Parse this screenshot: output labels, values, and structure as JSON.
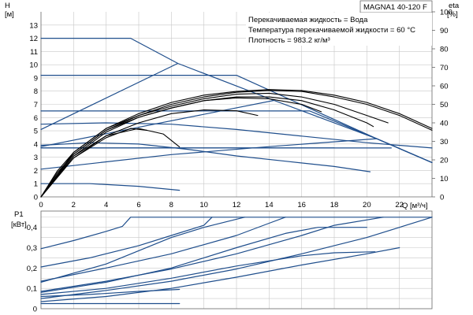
{
  "chart_data": [
    {
      "type": "line",
      "model_label": "MAGNA1 40-120 F",
      "annotations": [
        "Перекачиваемая жидкость = Вода",
        "Температура перекачиваемой жидкости = 60 °C",
        "Плотность = 983.2 кг/м³"
      ],
      "ylabel": "H",
      "yunit": "[м]",
      "y2label": "eta",
      "y2unit": "[%]",
      "xlabel": "Q",
      "xunit": "[м³/ч]",
      "xlim": [
        0,
        24
      ],
      "ylim": [
        0,
        14
      ],
      "y2lim": [
        0,
        100
      ],
      "x_ticks": [
        0,
        2,
        4,
        6,
        8,
        10,
        12,
        14,
        16,
        18,
        20,
        22
      ],
      "x_tick_labels": [
        "0",
        "2",
        "4",
        "6",
        "8",
        "10",
        "12",
        "14",
        "16",
        "18",
        "20",
        "22"
      ],
      "y_ticks": [
        0,
        1,
        2,
        3,
        4,
        5,
        6,
        7,
        8,
        9,
        10,
        11,
        12,
        13
      ],
      "y_tick_labels": [
        "0",
        "1",
        "2",
        "3",
        "4",
        "5",
        "6",
        "7",
        "8",
        "9",
        "10",
        "11",
        "12",
        "13"
      ],
      "y2_ticks": [
        0,
        10,
        20,
        30,
        40,
        50,
        60,
        70,
        80,
        90,
        100
      ],
      "y2_tick_labels": [
        "0",
        "10",
        "20",
        "30",
        "40",
        "50",
        "60",
        "70",
        "80",
        "90",
        "100"
      ],
      "grid": true,
      "colors": {
        "head": "#1f4e8c",
        "efficiency": "#000000",
        "grid": "#c8c8c8"
      },
      "series": [
        {
          "kind": "head",
          "points": [
            [
              0,
              12
            ],
            [
              5.5,
              12
            ],
            [
              8.4,
              10.1
            ],
            [
              14.3,
              7.3
            ],
            [
              20.6,
              4.4
            ],
            [
              24,
              2.6
            ]
          ]
        },
        {
          "kind": "head",
          "points": [
            [
              0,
              9.2
            ],
            [
              12,
              9.2
            ],
            [
              20.6,
              4.4
            ],
            [
              24,
              2.6
            ]
          ]
        },
        {
          "kind": "head",
          "points": [
            [
              0,
              6.5
            ],
            [
              16.5,
              6.5
            ],
            [
              20.6,
              4.4
            ],
            [
              24,
              2.6
            ]
          ]
        },
        {
          "kind": "head",
          "points": [
            [
              0,
              3.7
            ],
            [
              21.5,
              3.7
            ]
          ]
        },
        {
          "kind": "head",
          "points": [
            [
              0,
              5.1
            ],
            [
              8.4,
              10.1
            ]
          ]
        },
        {
          "kind": "head",
          "points": [
            [
              0,
              3.8
            ],
            [
              14.3,
              7.3
            ]
          ]
        },
        {
          "kind": "head",
          "points": [
            [
              0,
              2.1
            ],
            [
              8,
              3.2
            ],
            [
              14,
              3.8
            ],
            [
              20.6,
              4.4
            ]
          ]
        },
        {
          "kind": "head",
          "points": [
            [
              0,
              3.7
            ],
            [
              6,
              3.7
            ],
            [
              12,
              3.7
            ],
            [
              18,
              3.7
            ]
          ]
        },
        {
          "kind": "head",
          "points": [
            [
              0,
              5.5
            ],
            [
              4,
              5.6
            ],
            [
              8,
              5.5
            ],
            [
              12,
              5.1
            ],
            [
              16,
              4.6
            ],
            [
              20,
              4.1
            ],
            [
              24,
              3.7
            ]
          ]
        },
        {
          "kind": "head",
          "points": [
            [
              0,
              3.9
            ],
            [
              3,
              4.1
            ],
            [
              6,
              4
            ],
            [
              9,
              3.6
            ],
            [
              12,
              3.1
            ],
            [
              15,
              2.7
            ],
            [
              18,
              2.3
            ],
            [
              20.2,
              1.9
            ]
          ]
        },
        {
          "kind": "head",
          "points": [
            [
              0,
              1
            ],
            [
              3,
              1
            ],
            [
              6,
              0.8
            ],
            [
              8.5,
              0.5
            ]
          ]
        },
        {
          "kind": "efficiency",
          "points": [
            [
              0,
              0
            ],
            [
              1,
              14
            ],
            [
              2,
              24
            ],
            [
              4,
              37
            ],
            [
              6,
              45
            ],
            [
              8,
              51
            ],
            [
              10,
              55
            ],
            [
              12,
              57
            ],
            [
              14,
              58
            ],
            [
              16,
              57.5
            ],
            [
              18,
              55
            ],
            [
              20,
              51
            ],
            [
              22,
              45
            ],
            [
              24,
              37
            ]
          ]
        },
        {
          "kind": "efficiency",
          "points": [
            [
              0,
              0
            ],
            [
              1,
              13
            ],
            [
              2,
              23
            ],
            [
              4,
              36
            ],
            [
              6,
              44
            ],
            [
              8,
              50
            ],
            [
              10,
              54
            ],
            [
              12,
              56.5
            ],
            [
              14,
              57.5
            ],
            [
              16,
              57
            ],
            [
              18,
              54
            ],
            [
              20,
              50
            ],
            [
              22,
              44
            ],
            [
              24,
              36
            ]
          ]
        },
        {
          "kind": "efficiency",
          "points": [
            [
              0,
              0
            ],
            [
              2,
              24
            ],
            [
              4,
              37
            ],
            [
              6,
              44
            ],
            [
              8,
              49
            ],
            [
              10,
              53
            ],
            [
              12,
              55.5
            ],
            [
              14,
              56
            ],
            [
              16,
              54
            ],
            [
              18,
              50
            ],
            [
              20,
              44
            ],
            [
              21.3,
              40
            ]
          ]
        },
        {
          "kind": "efficiency",
          "points": [
            [
              0,
              0
            ],
            [
              2,
              23
            ],
            [
              4,
              36
            ],
            [
              6,
              43
            ],
            [
              8,
              48
            ],
            [
              10,
              52
            ],
            [
              12,
              54
            ],
            [
              14,
              54
            ],
            [
              16,
              52
            ],
            [
              18,
              47
            ],
            [
              20,
              40
            ],
            [
              20.4,
              38
            ]
          ]
        },
        {
          "kind": "efficiency",
          "points": [
            [
              0,
              0
            ],
            [
              2,
              22
            ],
            [
              4,
              35
            ],
            [
              6,
              43
            ],
            [
              8,
              48
            ],
            [
              10,
              52
            ],
            [
              12,
              53.5
            ],
            [
              14,
              53
            ],
            [
              16,
              50
            ],
            [
              17.2,
              46
            ]
          ]
        },
        {
          "kind": "efficiency",
          "points": [
            [
              0,
              0
            ],
            [
              2,
              21
            ],
            [
              4,
              33
            ],
            [
              6,
              40
            ],
            [
              8,
              45
            ],
            [
              10,
              47
            ],
            [
              12,
              46.5
            ],
            [
              13.3,
              44
            ]
          ]
        },
        {
          "kind": "efficiency",
          "points": [
            [
              0,
              0
            ],
            [
              2,
              22
            ],
            [
              4,
              33
            ],
            [
              6,
              37
            ],
            [
              7.5,
              34
            ],
            [
              8.5,
              27
            ]
          ]
        },
        {
          "kind": "efficiency",
          "points": [
            [
              0,
              0
            ],
            [
              2,
              21
            ],
            [
              4,
              32
            ],
            [
              5.5,
              37
            ],
            [
              6.5,
              36
            ]
          ]
        }
      ]
    },
    {
      "type": "line",
      "ylabel": "P1",
      "yunit": "[кВт]",
      "xlim": [
        0,
        24
      ],
      "ylim": [
        0,
        0.48
      ],
      "y_ticks": [
        0,
        0.1,
        0.2,
        0.3,
        0.4
      ],
      "y_tick_labels": [
        "0",
        "0,1",
        "0,2",
        "0,3",
        "0,4"
      ],
      "grid": true,
      "colors": {
        "power": "#1f4e8c"
      },
      "series": [
        {
          "kind": "power",
          "points": [
            [
              0,
              0.295
            ],
            [
              2,
              0.335
            ],
            [
              4,
              0.38
            ],
            [
              5,
              0.405
            ],
            [
              5.5,
              0.45
            ],
            [
              24,
              0.45
            ]
          ]
        },
        {
          "kind": "power",
          "points": [
            [
              0,
              0.205
            ],
            [
              3,
              0.25
            ],
            [
              6,
              0.31
            ],
            [
              8,
              0.36
            ],
            [
              10,
              0.41
            ],
            [
              10.5,
              0.45
            ]
          ]
        },
        {
          "kind": "power",
          "points": [
            [
              0,
              0.135
            ],
            [
              4,
              0.2
            ],
            [
              8,
              0.27
            ],
            [
              12,
              0.36
            ],
            [
              14,
              0.42
            ],
            [
              15,
              0.45
            ]
          ]
        },
        {
          "kind": "power",
          "points": [
            [
              0,
              0.085
            ],
            [
              4,
              0.135
            ],
            [
              8,
              0.195
            ],
            [
              12,
              0.27
            ],
            [
              16,
              0.36
            ],
            [
              18,
              0.41
            ],
            [
              21,
              0.45
            ]
          ]
        },
        {
          "kind": "power",
          "points": [
            [
              0,
              0.05
            ],
            [
              4,
              0.09
            ],
            [
              8,
              0.135
            ],
            [
              12,
              0.195
            ],
            [
              16,
              0.27
            ],
            [
              20,
              0.35
            ],
            [
              24,
              0.45
            ]
          ]
        },
        {
          "kind": "power",
          "points": [
            [
              0,
              0.035
            ],
            [
              4,
              0.06
            ],
            [
              8,
              0.1
            ],
            [
              12,
              0.155
            ],
            [
              16,
              0.215
            ],
            [
              20,
              0.27
            ],
            [
              22,
              0.3
            ]
          ]
        },
        {
          "kind": "power",
          "points": [
            [
              0,
              0.07
            ],
            [
              4,
              0.1
            ],
            [
              8,
              0.15
            ],
            [
              12,
              0.21
            ],
            [
              16,
              0.26
            ],
            [
              18,
              0.275
            ],
            [
              20.5,
              0.28
            ]
          ]
        },
        {
          "kind": "power",
          "points": [
            [
              0,
              0.08
            ],
            [
              4,
              0.13
            ],
            [
              8,
              0.2
            ],
            [
              12,
              0.3
            ],
            [
              15,
              0.37
            ],
            [
              17,
              0.4
            ],
            [
              20,
              0.4
            ]
          ]
        },
        {
          "kind": "power",
          "points": [
            [
              0,
              0.13
            ],
            [
              4,
              0.22
            ],
            [
              8,
              0.35
            ],
            [
              10,
              0.4
            ],
            [
              12.5,
              0.45
            ]
          ]
        },
        {
          "kind": "power",
          "points": [
            [
              0,
              0.06
            ],
            [
              3,
              0.07
            ],
            [
              6,
              0.085
            ],
            [
              8.5,
              0.095
            ]
          ]
        },
        {
          "kind": "power",
          "points": [
            [
              0,
              0.025
            ],
            [
              4,
              0.025
            ],
            [
              8.5,
              0.025
            ]
          ]
        }
      ]
    }
  ]
}
